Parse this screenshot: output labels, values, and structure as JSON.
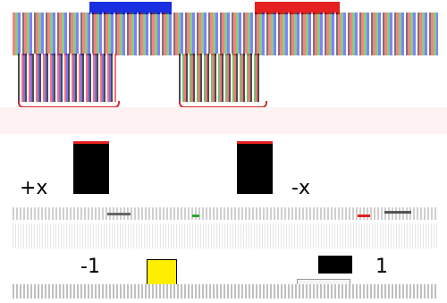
{
  "labels": {
    "plus_x": "+x",
    "minus_x": "-x",
    "minus_one": "-1",
    "one": "1"
  },
  "colors": {
    "blue_tab": "#1a2fe0",
    "red_tab": "#e52020",
    "yellow_box": "#ffee00",
    "accent_green": "#2aa52a",
    "accent_red": "#e02020"
  }
}
